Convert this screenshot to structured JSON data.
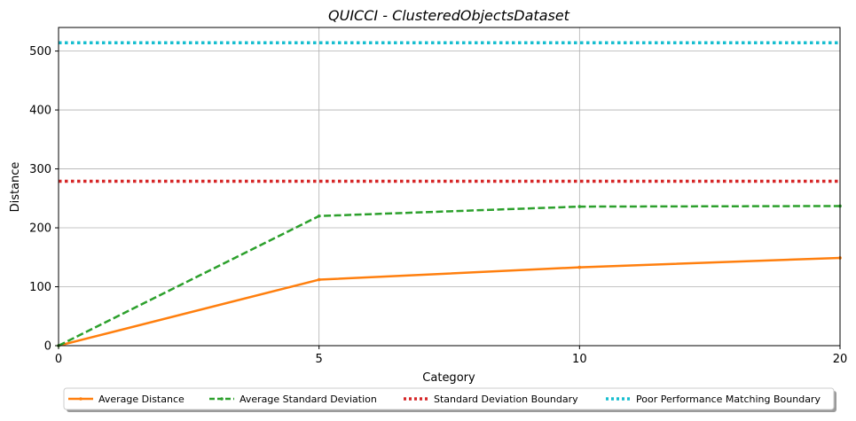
{
  "chart_data": {
    "type": "line",
    "title": "QUICCI - ClusteredObjectsDataset",
    "xlabel": "Category",
    "ylabel": "Distance",
    "x": [
      0,
      5,
      10,
      20
    ],
    "x_ticks": [
      "0",
      "5",
      "10",
      "20"
    ],
    "y_ticks": [
      "0",
      "100",
      "200",
      "300",
      "400",
      "500"
    ],
    "xlim": [
      0,
      20
    ],
    "ylim": [
      0,
      540
    ],
    "x_scale": "categorical-spacing",
    "grid": true,
    "legend_placement": "bottom-center",
    "series": [
      {
        "name": "Average Distance",
        "values": [
          0,
          112,
          133,
          149
        ],
        "color": "#ff7f0e",
        "style": "solid",
        "marker": "dot"
      },
      {
        "name": "Average Standard Deviation",
        "values": [
          0,
          220,
          236,
          237
        ],
        "color": "#2ca02c",
        "style": "dashed",
        "marker": "dot"
      }
    ],
    "reference_lines": [
      {
        "name": "Standard Deviation Boundary",
        "value": 279,
        "color": "#d62728",
        "style": "dotted"
      },
      {
        "name": "Poor Performance Matching Boundary",
        "value": 514,
        "color": "#17becf",
        "style": "dotted"
      }
    ]
  }
}
